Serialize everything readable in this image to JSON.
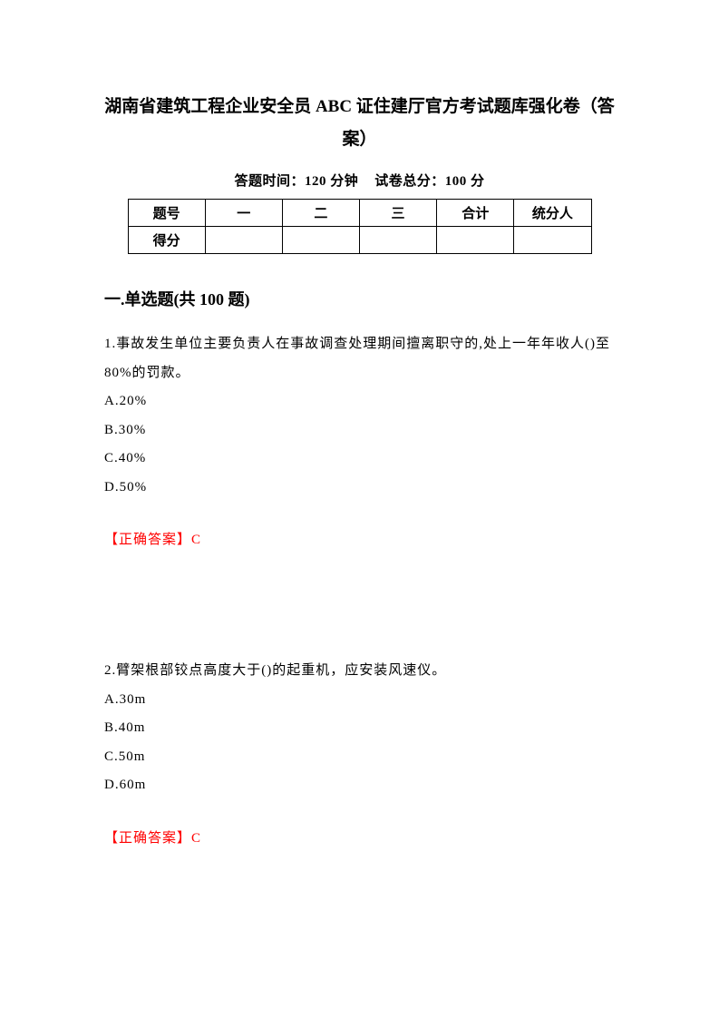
{
  "title": "湖南省建筑工程企业安全员 ABC 证住建厅官方考试题库强化卷（答案）",
  "exam_info_time_label": "答题时间：",
  "exam_info_time_value": "120 分钟",
  "exam_info_score_label": "试卷总分：",
  "exam_info_score_value": "100 分",
  "table": {
    "row1": {
      "c1": "题号",
      "c2": "一",
      "c3": "二",
      "c4": "三",
      "c5": "合计",
      "c6": "统分人"
    },
    "row2": {
      "c1": "得分",
      "c2": "",
      "c3": "",
      "c4": "",
      "c5": "",
      "c6": ""
    }
  },
  "section_header": "一.单选题(共 100 题)",
  "q1": {
    "text": "1.事故发生单位主要负责人在事故调查处理期间擅离职守的,处上一年年收人()至 80%的罚款。",
    "a": "A.20%",
    "b": "B.30%",
    "c": "C.40%",
    "d": "D.50%",
    "answer": "【正确答案】C"
  },
  "q2": {
    "text": "2.臂架根部铰点高度大于()的起重机，应安装风速仪。",
    "a": "A.30m",
    "b": "B.40m",
    "c": "C.50m",
    "d": "D.60m",
    "answer": "【正确答案】C"
  },
  "colors": {
    "text": "#000000",
    "answer": "#ff0000",
    "background": "#ffffff",
    "border": "#000000"
  }
}
